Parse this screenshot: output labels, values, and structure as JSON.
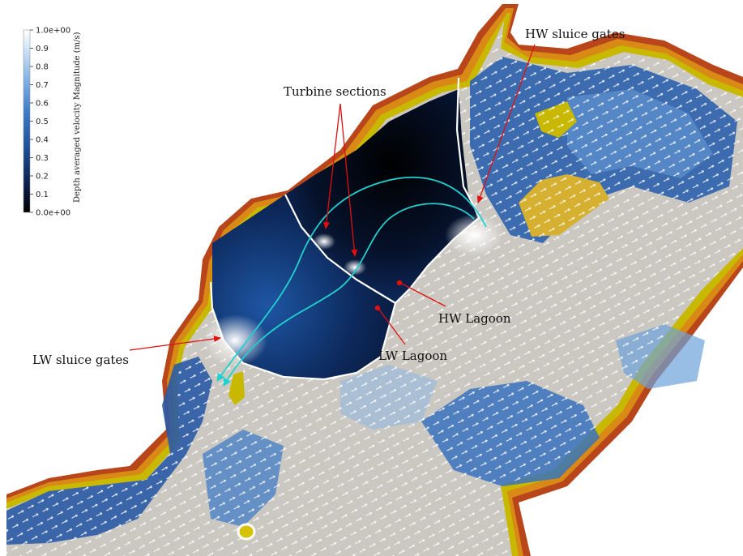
{
  "colorbar": {
    "title": "Depth averaged velocity Magnitude (m/s)",
    "ticks": [
      "1.0e+00",
      "0.9",
      "0.8",
      "0.7",
      "0.6",
      "0.5",
      "0.4",
      "0.3",
      "0.2",
      "0.1",
      "0.0e+00"
    ],
    "min": 0.0,
    "max": 1.0,
    "colormap": [
      "#000000",
      "#0b1f4a",
      "#1c4f96",
      "#3d7bc7",
      "#7fb0e3",
      "#c9e0f6",
      "#ffffff"
    ]
  },
  "annotations": {
    "hw_sluice": "HW sluice gates",
    "turbines": "Turbine sections",
    "hw_lagoon": "HW Lagoon",
    "lw_lagoon": "LW Lagoon",
    "lw_sluice": "LW sluice gates"
  },
  "colors": {
    "land": "#ffffff",
    "shore_yellow": "#c8b800",
    "shore_orange": "#d98a16",
    "shore_red": "#b8461a",
    "deep_water": "#cbc8c2",
    "flow_arrows": "#ffffff",
    "streamline": "#21d1cf",
    "callout": "#e01010"
  }
}
